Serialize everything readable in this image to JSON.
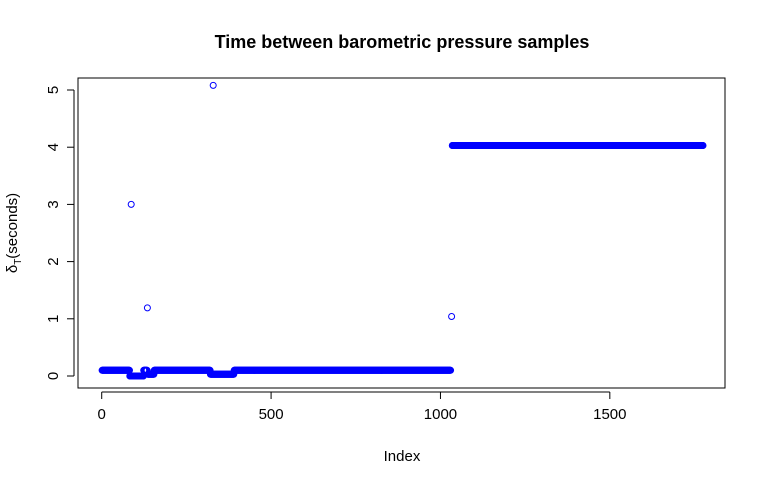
{
  "chart_data": {
    "type": "scatter",
    "title": "Time between barometric pressure samples",
    "xlabel": "Index",
    "ylabel": {
      "symbol": "δ",
      "subscript": "T",
      "unit": "(seconds)"
    },
    "xlim": [
      -70,
      1840
    ],
    "ylim": [
      -0.21,
      5.21
    ],
    "xticks": [
      0,
      500,
      1000,
      1500
    ],
    "yticks": [
      0,
      1,
      2,
      3,
      4,
      5
    ],
    "grid": false,
    "legend": "none",
    "point_color": "#0000ff",
    "segments": [
      {
        "x_start": 1,
        "x_end": 82,
        "y": 0.1
      },
      {
        "x_start": 83,
        "x_end": 123,
        "y": 0.0
      },
      {
        "x_start": 124,
        "x_end": 134,
        "y": 0.1
      },
      {
        "x_start": 136,
        "x_end": 154,
        "y": 0.03
      },
      {
        "x_start": 155,
        "x_end": 320,
        "y": 0.1
      },
      {
        "x_start": 321,
        "x_end": 390,
        "y": 0.03
      },
      {
        "x_start": 391,
        "x_end": 1030,
        "y": 0.1
      },
      {
        "x_start": 1035,
        "x_end": 1775,
        "y": 4.03
      }
    ],
    "points": [
      {
        "x": 87,
        "y": 3.0
      },
      {
        "x": 135,
        "y": 1.19
      },
      {
        "x": 329,
        "y": 5.08
      },
      {
        "x": 1033,
        "y": 1.04
      }
    ]
  }
}
